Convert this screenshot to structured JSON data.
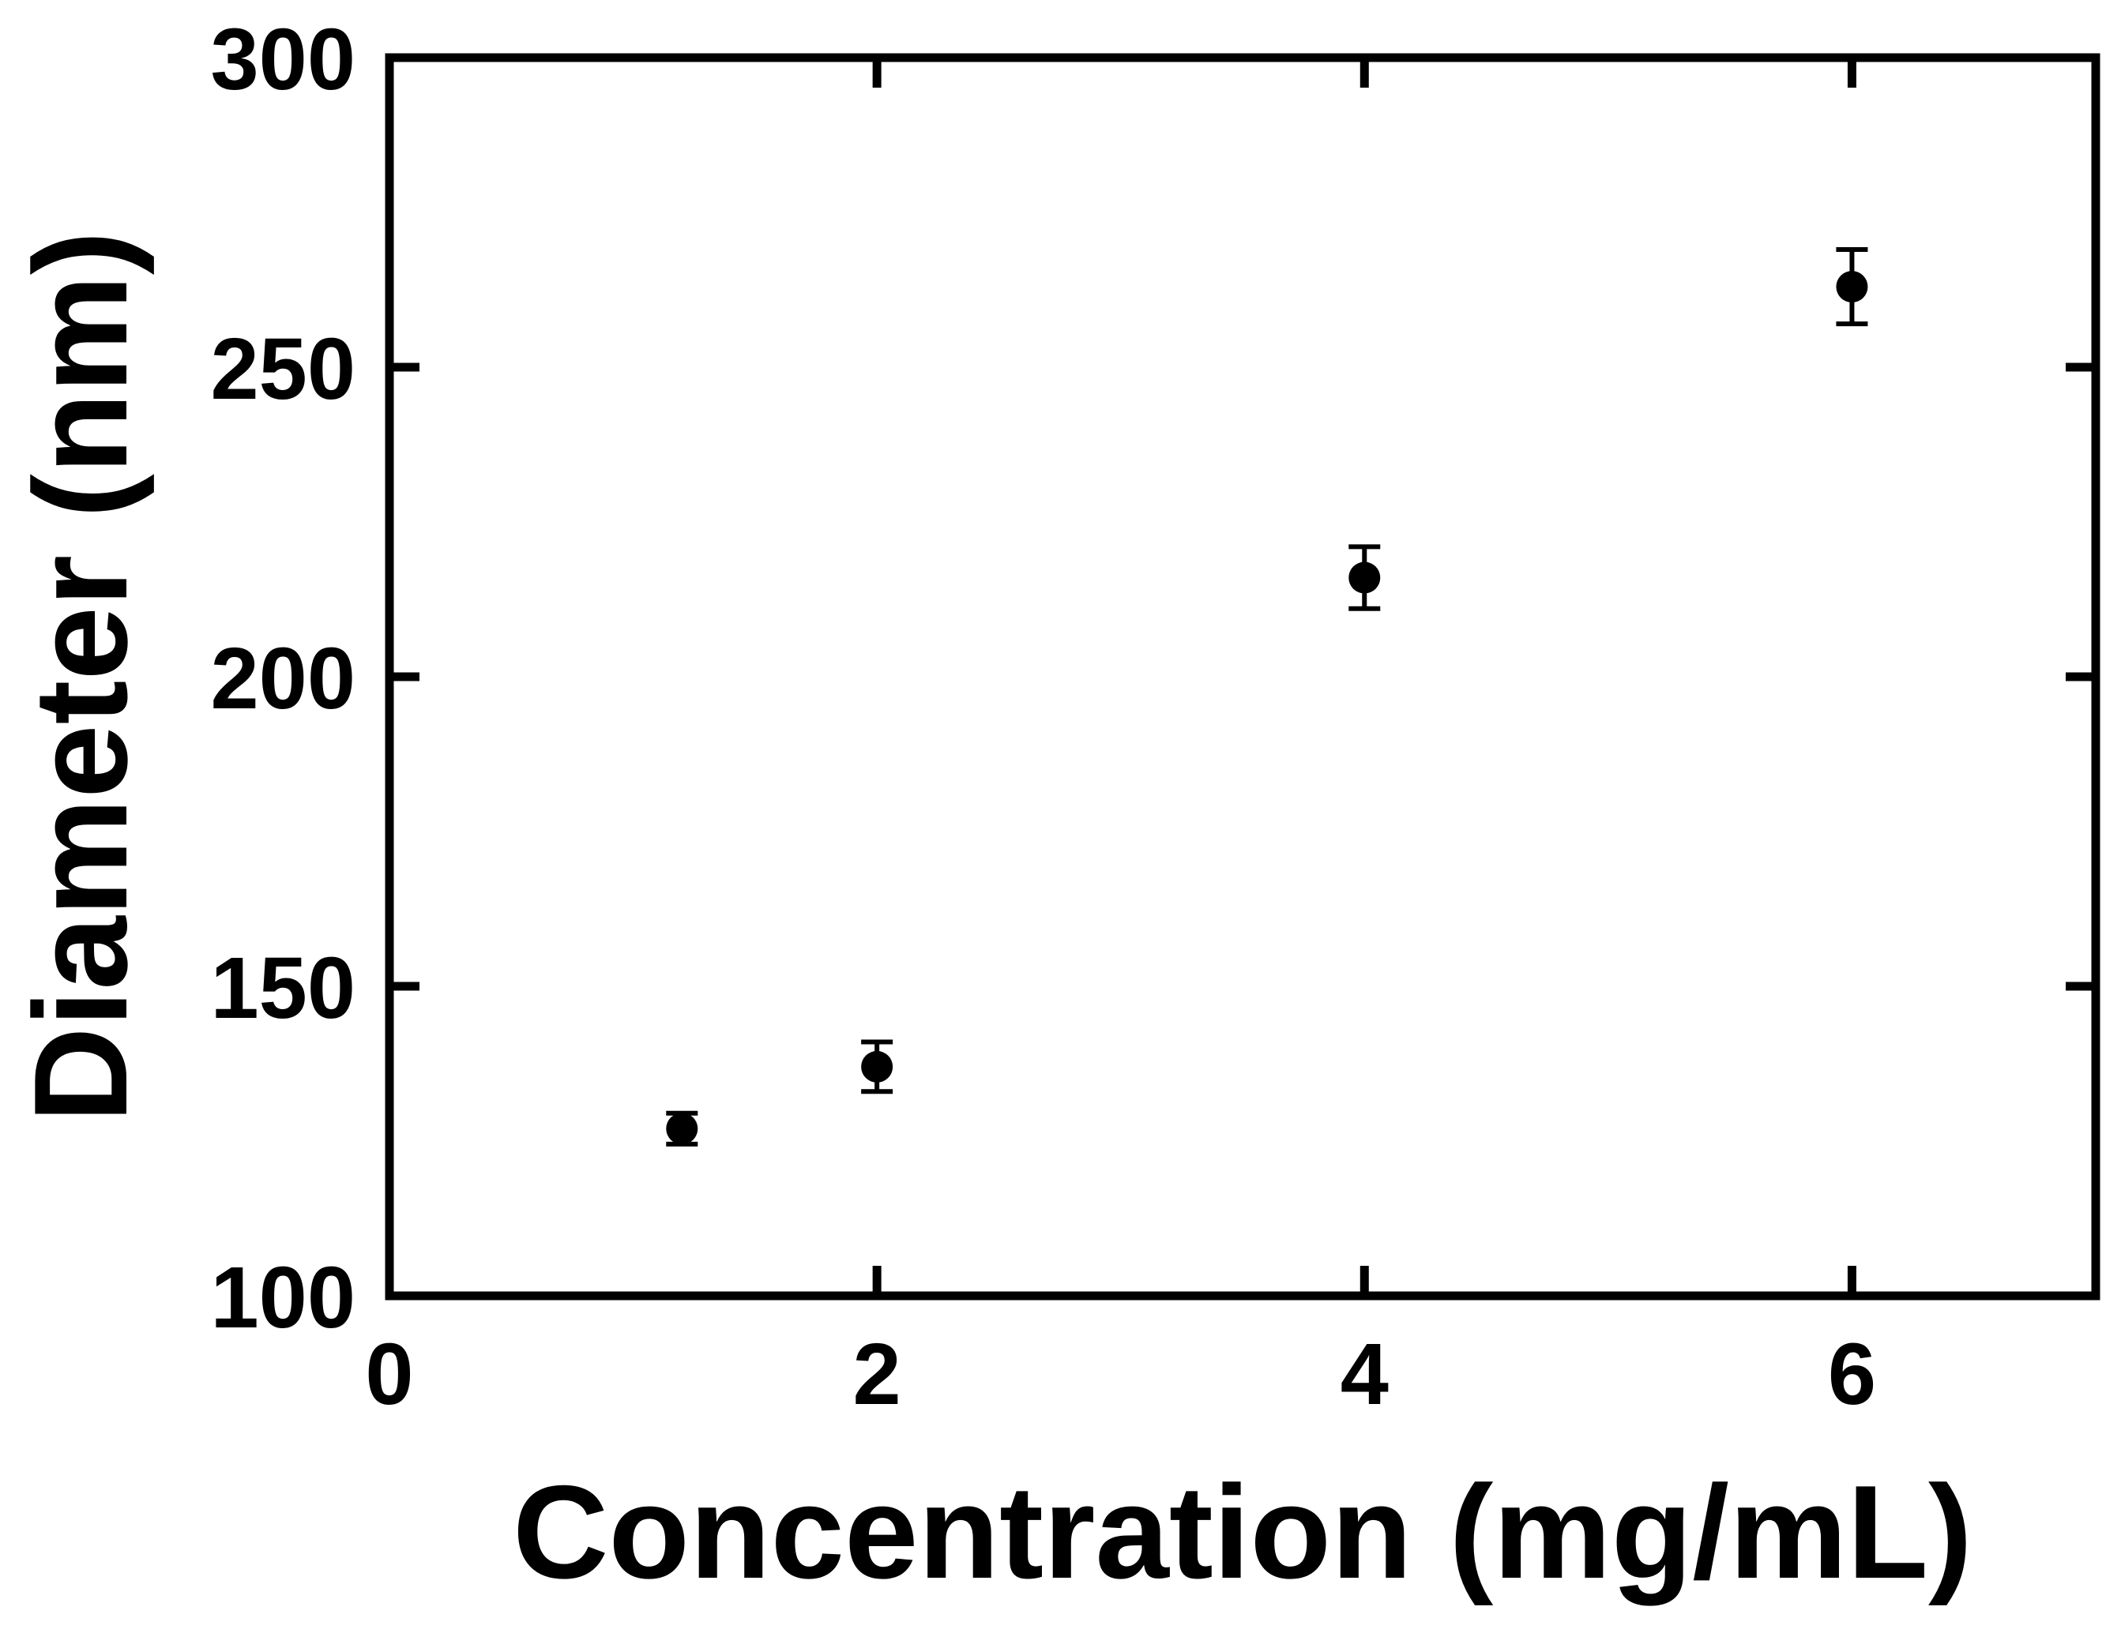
{
  "chart_data": {
    "type": "scatter",
    "title": "",
    "xlabel": "Concentration (mg/mL)",
    "ylabel": "Diameter (nm)",
    "xlim": [
      0,
      7
    ],
    "ylim": [
      100,
      300
    ],
    "x_ticks": [
      0,
      2,
      4,
      6
    ],
    "y_ticks": [
      100,
      150,
      200,
      250,
      300
    ],
    "x_tick_labels": [
      "0",
      "2",
      "4",
      "6"
    ],
    "y_tick_labels": [
      "100",
      "150",
      "200",
      "250",
      "300"
    ],
    "grid": false,
    "legend": "none",
    "marker_color": "#000000",
    "series": [
      {
        "points": [
          {
            "x": 1.2,
            "y": 127,
            "err": 2.5
          },
          {
            "x": 2.0,
            "y": 137,
            "err": 4
          },
          {
            "x": 4.0,
            "y": 216,
            "err": 5
          },
          {
            "x": 6.0,
            "y": 263,
            "err": 6
          }
        ]
      }
    ]
  }
}
